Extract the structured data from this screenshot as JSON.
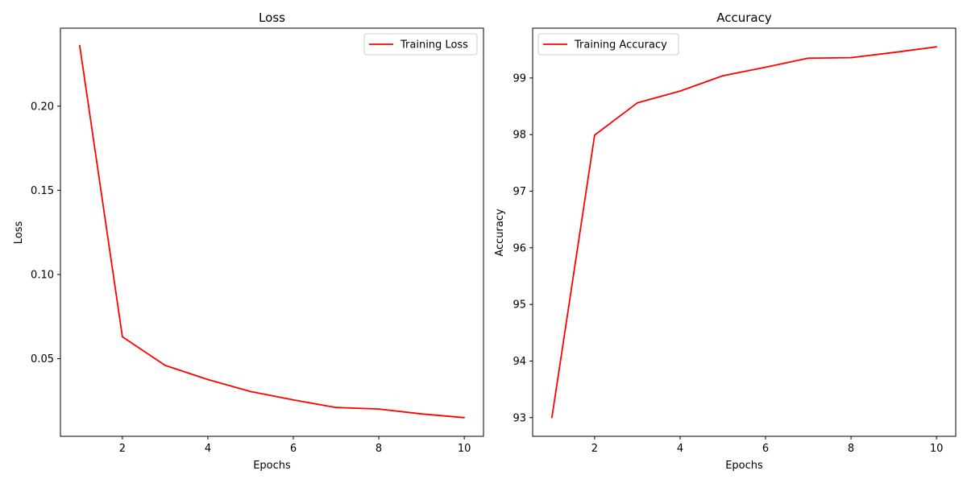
{
  "chart_data": [
    {
      "type": "line",
      "title": "Loss",
      "xlabel": "Epochs",
      "ylabel": "Loss",
      "xlim": [
        0.55,
        10.45
      ],
      "ylim": [
        0.0039,
        0.2463
      ],
      "xticks": [
        2,
        4,
        6,
        8,
        10
      ],
      "xtick_labels": [
        "2",
        "4",
        "6",
        "8",
        "10"
      ],
      "yticks": [
        0.05,
        0.1,
        0.15,
        0.2
      ],
      "ytick_labels": [
        "0.05",
        "0.10",
        "0.15",
        "0.20"
      ],
      "grid": false,
      "legend_position": "upper right",
      "series": [
        {
          "name": "Training Loss",
          "color": "#ff0000",
          "x": [
            1,
            2,
            3,
            4,
            5,
            6,
            7,
            8,
            9,
            10
          ],
          "y": [
            0.236,
            0.063,
            0.046,
            0.0376,
            0.0305,
            0.0255,
            0.021,
            0.0201,
            0.0172,
            0.015
          ]
        }
      ]
    },
    {
      "type": "line",
      "title": "Accuracy",
      "xlabel": "Epochs",
      "ylabel": "Accuracy",
      "xlim": [
        0.55,
        10.45
      ],
      "ylim": [
        92.67,
        99.88
      ],
      "xticks": [
        2,
        4,
        6,
        8,
        10
      ],
      "xtick_labels": [
        "2",
        "4",
        "6",
        "8",
        "10"
      ],
      "yticks": [
        93,
        94,
        95,
        96,
        97,
        98,
        99
      ],
      "ytick_labels": [
        "93",
        "94",
        "95",
        "96",
        "97",
        "98",
        "99"
      ],
      "grid": false,
      "legend_position": "upper left",
      "series": [
        {
          "name": "Training Accuracy",
          "color": "#ff0000",
          "x": [
            1,
            2,
            3,
            4,
            5,
            6,
            7,
            8,
            9,
            10
          ],
          "y": [
            93.0,
            97.99,
            98.56,
            98.77,
            99.04,
            99.19,
            99.35,
            99.36,
            99.45,
            99.55
          ]
        }
      ]
    }
  ]
}
